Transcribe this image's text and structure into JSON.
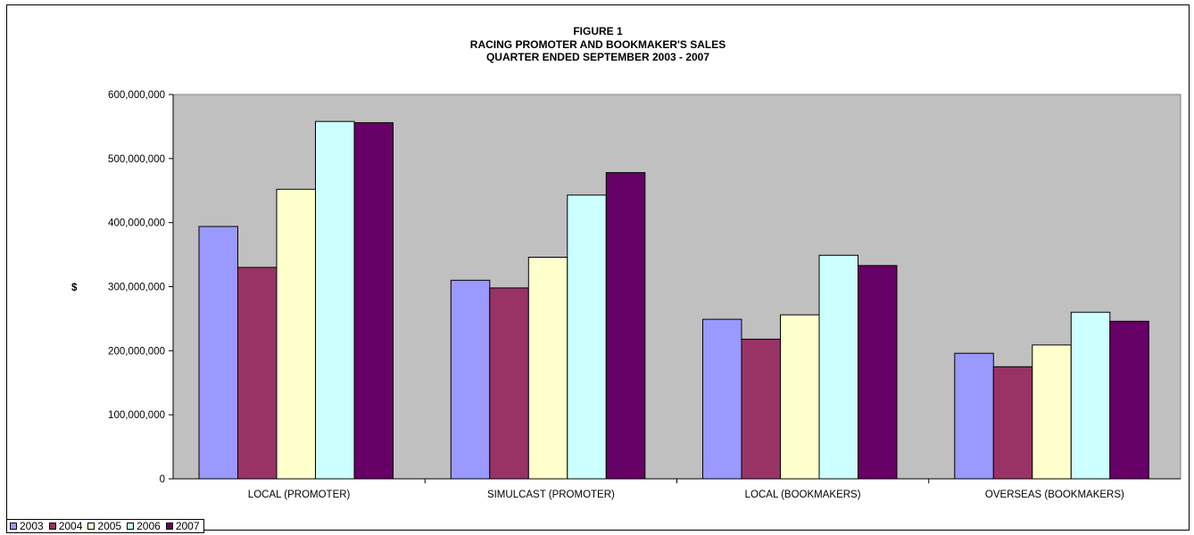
{
  "chart_data": {
    "type": "bar",
    "title": [
      "FIGURE 1",
      "RACING PROMOTER AND BOOKMAKER'S SALES",
      "QUARTER ENDED SEPTEMBER 2003 - 2007"
    ],
    "ylabel": "$",
    "xlabel": "",
    "ylim": [
      0,
      600000000
    ],
    "y_ticks": [
      0,
      100000000,
      200000000,
      300000000,
      400000000,
      500000000,
      600000000
    ],
    "y_tick_labels": [
      "0",
      "100,000,000",
      "200,000,000",
      "300,000,000",
      "400,000,000",
      "500,000,000",
      "600,000,000"
    ],
    "grid": false,
    "plot_background": "#c0c0c0",
    "legend_position": "bottom-left",
    "categories": [
      "LOCAL (PROMOTER)",
      "SIMULCAST (PROMOTER)",
      "LOCAL (BOOKMAKERS)",
      "OVERSEAS (BOOKMAKERS)"
    ],
    "series": [
      {
        "name": "2003",
        "color": "#9999ff",
        "values": [
          394000000,
          310000000,
          249000000,
          196000000
        ]
      },
      {
        "name": "2004",
        "color": "#993366",
        "values": [
          330000000,
          298000000,
          218000000,
          175000000
        ]
      },
      {
        "name": "2005",
        "color": "#ffffcc",
        "values": [
          452000000,
          346000000,
          256000000,
          209000000
        ]
      },
      {
        "name": "2006",
        "color": "#ccffff",
        "values": [
          558000000,
          443000000,
          349000000,
          260000000
        ]
      },
      {
        "name": "2007",
        "color": "#660066",
        "values": [
          556000000,
          478000000,
          333000000,
          246000000
        ]
      }
    ]
  }
}
